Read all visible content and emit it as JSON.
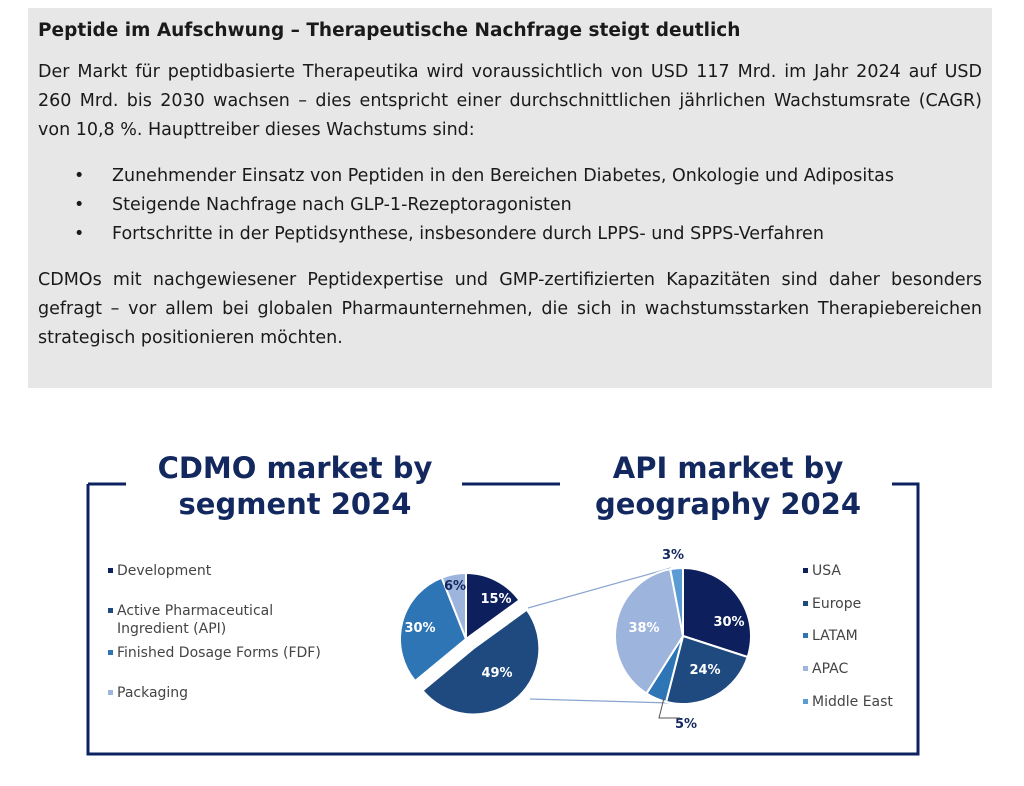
{
  "article": {
    "headline": "Peptide im Aufschwung – Therapeutische Nachfrage steigt deutlich",
    "intro": "Der Markt für peptidbasierte Therapeutika wird voraussichtlich von USD 117 Mrd. im Jahr 2024 auf USD 260 Mrd. bis 2030 wachsen – dies entspricht einer durchschnittlichen jährlichen Wachstumsrate (CAGR) von 10,8 %. Haupttreiber dieses Wachstums sind:",
    "bullets": [
      "Zunehmender Einsatz von Peptiden in den Bereichen Diabetes, Onkologie und Adipositas",
      "Steigende Nachfrage nach GLP-1-Rezeptoragonisten",
      "Fortschritte in der Peptidsynthese, insbesondere durch LPPS- und SPPS-Verfahren"
    ],
    "bullet_symbol": "•",
    "outro": "CDMOs mit nachgewiesener Peptidexpertise und GMP-zertifizierten Kapazitäten sind daher besonders gefragt – vor allem bei globalen Pharmaunternehmen, die sich in wachstumsstarken Therapiebereichen strategisch positionieren möchten."
  },
  "colors": {
    "frame": "#0d2260",
    "title": "#13285e",
    "legend_text": "#444444",
    "callout_line": "#8aa5d0"
  },
  "chart_data": [
    {
      "type": "pie",
      "title_lines": [
        "CDMO market by",
        "segment 2024"
      ],
      "legend_position": "left",
      "series": [
        {
          "name": "Development",
          "value": 15,
          "label": "15%",
          "color": "#0d1f5c"
        },
        {
          "name": "Active Pharmaceutical Ingredient (API)",
          "value": 49,
          "label": "49%",
          "color": "#1f4a7f",
          "exploded": true
        },
        {
          "name": "Finished Dosage Forms (FDF)",
          "value": 30,
          "label": "30%",
          "color": "#2e75b6"
        },
        {
          "name": "Packaging",
          "value": 6,
          "label": "6%",
          "color": "#9db4dd"
        }
      ]
    },
    {
      "type": "pie",
      "title_lines": [
        "API market by",
        "geography 2024"
      ],
      "legend_position": "right",
      "series": [
        {
          "name": "USA",
          "value": 30,
          "label": "30%",
          "color": "#0d1f5c"
        },
        {
          "name": "Europe",
          "value": 24,
          "label": "24%",
          "color": "#1f4a7f"
        },
        {
          "name": "LATAM",
          "value": 5,
          "label": "5%",
          "color": "#2e75b6"
        },
        {
          "name": "APAC",
          "value": 38,
          "label": "38%",
          "color": "#9db4dd"
        },
        {
          "name": "Middle East",
          "value": 3,
          "label": "3%",
          "color": "#5a9bd5"
        }
      ]
    }
  ]
}
